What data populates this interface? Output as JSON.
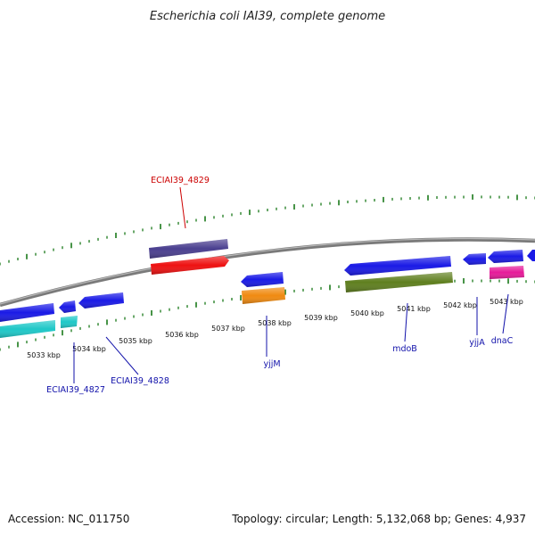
{
  "title": "Escherichia coli IAI39, complete genome",
  "footer": {
    "accession": "Accession: NC_011750",
    "topology": "Topology: circular; Length: 5,132,068 bp; Genes: 4,937"
  },
  "kbp_labels": [
    "5033 kbp",
    "5034 kbp",
    "5035 kbp",
    "5036 kbp",
    "5037 kbp",
    "5038 kbp",
    "5039 kbp",
    "5040 kbp",
    "5041 kbp",
    "5042 kbp",
    "5043 kbp"
  ],
  "gene_labels": {
    "ECIAI39_4829": "ECIAI39_4829",
    "ECIAI39_4827": "ECIAI39_4827",
    "ECIAI39_4828": "ECIAI39_4828",
    "yjjM": "yjjM",
    "mdoB": "mdoB",
    "yjjA": "yjjA",
    "dnaC": "dnaC"
  },
  "colors": {
    "backbone": "#8a8a8a",
    "tick": "#1a7a1a",
    "gene_blue": "#1a1ae6",
    "gene_red": "#ee1111",
    "gene_purple": "#4a3f8f",
    "gene_cyan": "#1ec8c8",
    "gene_orange": "#f08a10",
    "gene_olive": "#5f7f1f",
    "gene_pink": "#e61a99",
    "label_blue": "#1111aa",
    "label_red": "#cc0000"
  }
}
